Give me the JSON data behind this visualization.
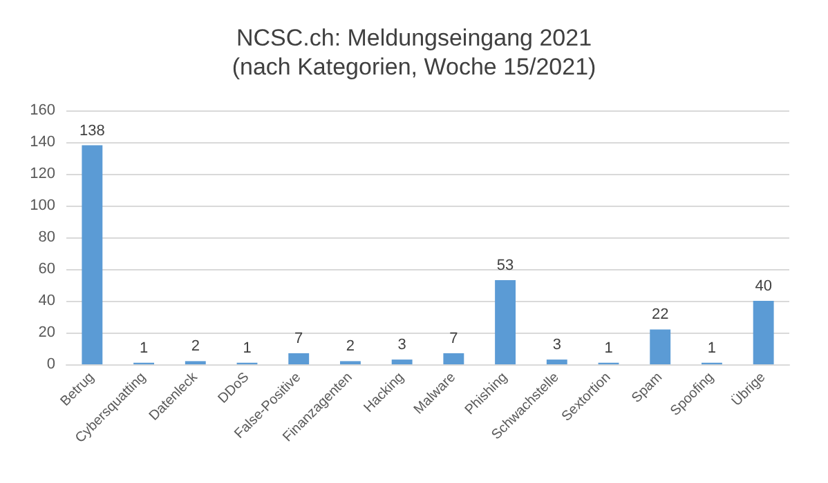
{
  "chart_data": {
    "type": "bar",
    "title": "NCSC.ch: Meldungseingang 2021",
    "subtitle": "(nach Kategorien, Woche 15/2021)",
    "categories": [
      "Betrug",
      "Cybersquatting",
      "Datenleck",
      "DDoS",
      "False-Positive",
      "Finanzagenten",
      "Hacking",
      "Malware",
      "Phishing",
      "Schwachstelle",
      "Sextortion",
      "Spam",
      "Spoofing",
      "Übrige"
    ],
    "values": [
      138,
      1,
      2,
      1,
      7,
      2,
      3,
      7,
      53,
      3,
      1,
      22,
      1,
      40
    ],
    "color": "#5b9bd5",
    "ylim": [
      0,
      160
    ],
    "yticks": [
      0,
      20,
      40,
      60,
      80,
      100,
      120,
      140,
      160
    ],
    "grid": "y",
    "data_labels": true
  }
}
